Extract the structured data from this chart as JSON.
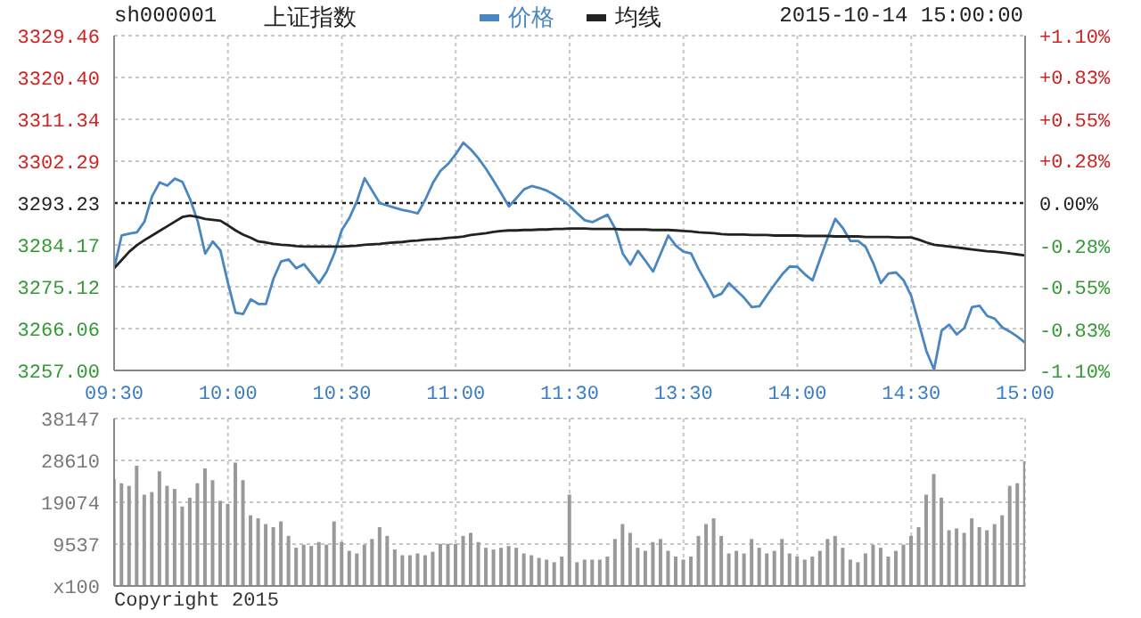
{
  "chart_data": [
    {
      "type": "line",
      "title": "上证指数",
      "subtitle": "sh000001",
      "annotations": [
        "2015-10-14 15:00:00"
      ],
      "legend": "top",
      "grid": true,
      "marker": "none",
      "categories": [
        "09:30",
        null,
        null,
        null,
        null,
        null,
        null,
        null,
        null,
        null,
        null,
        null,
        null,
        null,
        null,
        "10:00",
        null,
        null,
        null,
        null,
        null,
        null,
        null,
        null,
        null,
        null,
        null,
        null,
        null,
        null,
        "10:30",
        null,
        null,
        null,
        null,
        null,
        null,
        null,
        null,
        null,
        null,
        null,
        null,
        null,
        null,
        "11:00",
        null,
        null,
        null,
        null,
        null,
        null,
        null,
        null,
        null,
        null,
        null,
        null,
        null,
        null,
        "11:30",
        null,
        null,
        null,
        null,
        null,
        null,
        null,
        null,
        null,
        null,
        null,
        null,
        null,
        null,
        "13:30",
        null,
        null,
        null,
        null,
        null,
        null,
        null,
        null,
        null,
        null,
        null,
        null,
        null,
        null,
        "14:00",
        null,
        null,
        null,
        null,
        null,
        null,
        null,
        null,
        null,
        null,
        null,
        null,
        null,
        null,
        "14:30",
        null,
        null,
        null,
        null,
        null,
        null,
        null,
        null,
        null,
        null,
        null,
        null,
        null,
        null,
        "15:00"
      ],
      "ylim": [
        3257.0,
        3329.46
      ],
      "yticks": [
        {
          "value": 3257.0,
          "label": "3257.00"
        },
        3266.06,
        3275.12,
        3284.17,
        3293.23,
        3302.29,
        3311.34,
        {
          "value": 3320.4,
          "label": "3320.40"
        },
        3329.46
      ],
      "y2lim": [
        -1.1,
        1.1
      ],
      "y2ticks": [
        {
          "value": -1.1,
          "label": "-1.10%"
        },
        {
          "value": -0.83,
          "label": "-0.83%"
        },
        {
          "value": -0.55,
          "label": "-0.55%"
        },
        {
          "value": -0.28,
          "label": "-0.28%"
        },
        {
          "value": 0,
          "label": "0.00%"
        },
        {
          "value": 0.28,
          "label": "+0.28%"
        },
        {
          "value": 0.55,
          "label": "+0.55%"
        },
        {
          "value": 0.83,
          "label": "+0.83%"
        },
        {
          "value": 1.1,
          "label": "+1.10%"
        }
      ],
      "ref_lines": [
        {
          "axis": "y",
          "value": 3293.23,
          "color": "#222222",
          "line_style": "dotted"
        }
      ],
      "series": [
        {
          "name": "价格",
          "color": "#4a86c0",
          "values": [
            3279.1,
            3286.2,
            3286.6,
            3286.9,
            3289.2,
            3294.7,
            3297.7,
            3297.0,
            3298.5,
            3297.8,
            3294.1,
            3289.4,
            3282.3,
            3284.9,
            3283.0,
            3275.9,
            3269.5,
            3269.2,
            3272.4,
            3271.4,
            3271.4,
            3276.9,
            3280.6,
            3281.0,
            3279.1,
            3280.0,
            3278.0,
            3275.9,
            3278.4,
            3282.3,
            3287.4,
            3290.0,
            3293.7,
            3298.6,
            3295.9,
            3293.2,
            3292.7,
            3292.2,
            3291.7,
            3291.4,
            3291.0,
            3294.0,
            3297.6,
            3300.2,
            3301.7,
            3303.8,
            3306.3,
            3304.8,
            3302.9,
            3300.6,
            3298.0,
            3295.3,
            3292.5,
            3294.3,
            3296.2,
            3296.9,
            3296.5,
            3295.9,
            3295.0,
            3293.9,
            3292.6,
            3291.0,
            3289.5,
            3289.1,
            3289.9,
            3290.7,
            3287.7,
            3282.3,
            3279.9,
            3282.9,
            3280.7,
            3278.4,
            3282.3,
            3286.2,
            3284.0,
            3282.7,
            3282.3,
            3278.9,
            3276.0,
            3272.9,
            3273.6,
            3275.9,
            3274.3,
            3272.7,
            3270.7,
            3270.9,
            3273.3,
            3275.6,
            3277.8,
            3279.5,
            3279.4,
            3277.8,
            3276.5,
            3281.2,
            3285.7,
            3289.8,
            3287.8,
            3285.0,
            3285.0,
            3283.7,
            3280.2,
            3275.9,
            3278.0,
            3278.2,
            3276.5,
            3273.1,
            3267.2,
            3261.2,
            3257.2,
            3265.6,
            3266.9,
            3264.8,
            3266.2,
            3270.7,
            3271.0,
            3268.8,
            3268.2,
            3266.3,
            3265.4,
            3264.3,
            3263.0
          ]
        },
        {
          "name": "均线",
          "color": "#222222",
          "values": [
            3279.1,
            3280.9,
            3282.7,
            3284.1,
            3285.2,
            3286.2,
            3287.2,
            3288.2,
            3289.2,
            3290.2,
            3290.5,
            3290.2,
            3289.8,
            3289.6,
            3289.4,
            3288.4,
            3287.3,
            3286.4,
            3285.7,
            3284.9,
            3284.7,
            3284.4,
            3284.2,
            3284.1,
            3283.9,
            3283.8,
            3283.8,
            3283.8,
            3283.8,
            3283.8,
            3283.8,
            3283.9,
            3284.0,
            3284.2,
            3284.3,
            3284.4,
            3284.6,
            3284.7,
            3284.8,
            3285.0,
            3285.1,
            3285.3,
            3285.4,
            3285.5,
            3285.7,
            3285.8,
            3286.0,
            3286.3,
            3286.5,
            3286.7,
            3287.0,
            3287.2,
            3287.3,
            3287.3,
            3287.4,
            3287.4,
            3287.5,
            3287.5,
            3287.6,
            3287.6,
            3287.7,
            3287.7,
            3287.7,
            3287.6,
            3287.6,
            3287.6,
            3287.6,
            3287.5,
            3287.5,
            3287.5,
            3287.5,
            3287.4,
            3287.4,
            3287.4,
            3287.3,
            3287.2,
            3287.1,
            3286.9,
            3286.8,
            3286.7,
            3286.5,
            3286.4,
            3286.4,
            3286.4,
            3286.3,
            3286.3,
            3286.3,
            3286.2,
            3286.2,
            3286.2,
            3286.2,
            3286.1,
            3286.1,
            3286.1,
            3286.1,
            3286.0,
            3286.0,
            3286.0,
            3286.0,
            3285.9,
            3285.9,
            3285.9,
            3285.9,
            3285.8,
            3285.8,
            3285.8,
            3285.3,
            3284.7,
            3284.2,
            3284.0,
            3283.8,
            3283.6,
            3283.4,
            3283.2,
            3283.0,
            3282.8,
            3282.7,
            3282.5,
            3282.3,
            3282.1,
            3281.9
          ]
        }
      ]
    },
    {
      "type": "bar",
      "annotations": [
        "Copyright 2015"
      ],
      "grid": true,
      "tick_labels": "y",
      "color": "#999999",
      "categories": [
        null,
        null,
        null,
        null,
        null,
        null,
        null,
        null,
        null,
        null,
        null,
        null,
        null,
        null,
        null,
        null,
        null,
        null,
        null,
        null,
        null,
        null,
        null,
        null,
        null,
        null,
        null,
        null,
        null,
        null,
        null,
        null,
        null,
        null,
        null,
        null,
        null,
        null,
        null,
        null,
        null,
        null,
        null,
        null,
        null,
        null,
        null,
        null,
        null,
        null,
        null,
        null,
        null,
        null,
        null,
        null,
        null,
        null,
        null,
        null,
        null,
        null,
        null,
        null,
        null,
        null,
        null,
        null,
        null,
        null,
        null,
        null,
        null,
        null,
        null,
        null,
        null,
        null,
        null,
        null,
        null,
        null,
        null,
        null,
        null,
        null,
        null,
        null,
        null,
        null,
        null,
        null,
        null,
        null,
        null,
        null,
        null,
        null,
        null,
        null,
        null,
        null,
        null,
        null,
        null,
        null,
        null,
        null,
        null,
        null,
        null,
        null,
        null,
        null,
        null,
        null,
        null,
        null,
        null,
        null,
        null
      ],
      "ylim": [
        0,
        38147
      ],
      "yticks": [
        {
          "value": 0,
          "label": "x100"
        },
        9537,
        19074,
        28610,
        38147
      ],
      "values": [
        24400,
        23400,
        22800,
        27400,
        20800,
        21400,
        26100,
        22800,
        22100,
        18100,
        20100,
        23400,
        26800,
        24100,
        19400,
        18700,
        28100,
        24100,
        16100,
        15400,
        14100,
        13400,
        14700,
        11400,
        8700,
        9400,
        9100,
        10000,
        9400,
        14700,
        10000,
        8000,
        7400,
        9400,
        10700,
        13400,
        11400,
        8300,
        7000,
        7000,
        7400,
        7000,
        7800,
        9600,
        9600,
        9600,
        11400,
        12100,
        10000,
        8700,
        8300,
        8700,
        9100,
        8700,
        7400,
        7000,
        6400,
        6000,
        5400,
        6700,
        20800,
        5400,
        6000,
        6000,
        6000,
        6700,
        10700,
        14100,
        12100,
        8700,
        8000,
        10000,
        10700,
        8000,
        6700,
        6000,
        6700,
        11400,
        14100,
        15400,
        11400,
        7400,
        8000,
        7400,
        10700,
        8700,
        7400,
        8000,
        10700,
        7400,
        6700,
        6000,
        6700,
        8000,
        10700,
        11400,
        8700,
        6000,
        5400,
        7400,
        9400,
        8700,
        6700,
        8000,
        9400,
        11400,
        13400,
        20800,
        25500,
        20100,
        12700,
        13100,
        12100,
        15400,
        13400,
        12700,
        14100,
        16100,
        22800,
        23400,
        28400
      ]
    }
  ]
}
